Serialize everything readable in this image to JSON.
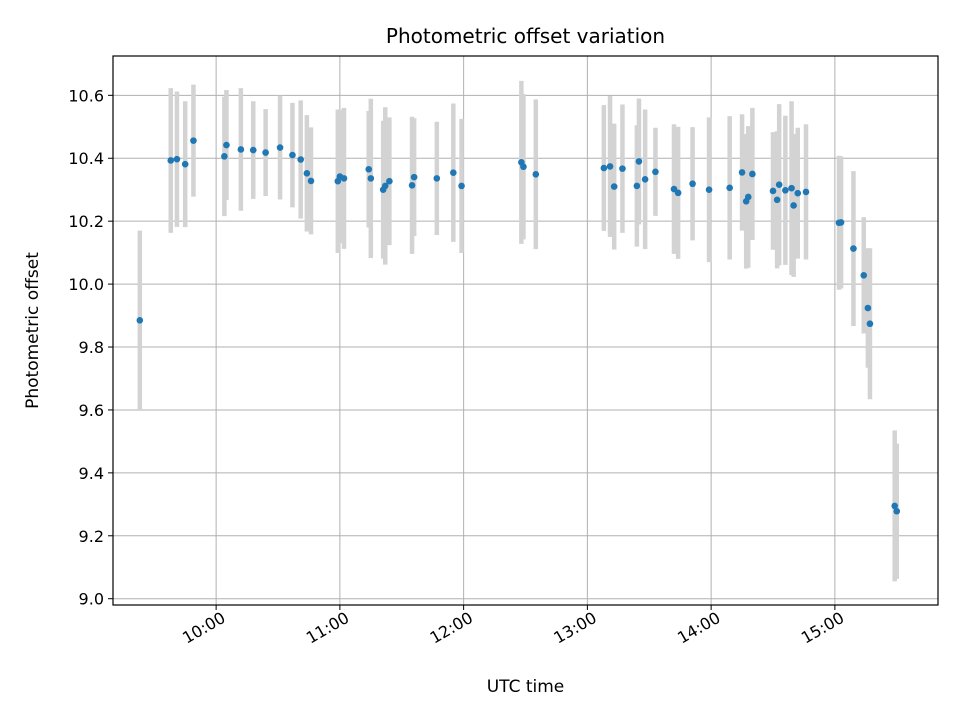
{
  "chart_data": {
    "type": "scatter",
    "title": "Photometric offset variation",
    "xlabel": "UTC time",
    "ylabel": "Photometric offset",
    "grid": true,
    "xlim": [
      "09:10",
      "15:50"
    ],
    "ylim": [
      8.98,
      10.725
    ],
    "x_ticks": [
      "10:00",
      "11:00",
      "12:00",
      "13:00",
      "14:00",
      "15:00"
    ],
    "y_ticks": [
      "9.0",
      "9.2",
      "9.4",
      "9.6",
      "9.8",
      "10.0",
      "10.2",
      "10.4",
      "10.6"
    ],
    "colors": {
      "point": "#1f77b4",
      "errorbar": "#d3d3d3",
      "grid": "#b0b0b0"
    },
    "series": [
      {
        "x": [
          "09:23",
          "09:38",
          "09:41",
          "09:45",
          "09:49",
          "10:04",
          "10:05",
          "10:12",
          "10:18",
          "10:24",
          "10:31",
          "10:37",
          "10:41",
          "10:44",
          "10:46",
          "10:59",
          "11:00",
          "11:02",
          "11:14",
          "11:15",
          "11:21",
          "11:22",
          "11:24",
          "11:35",
          "11:36",
          "11:47",
          "11:55",
          "11:59",
          "12:28",
          "12:29",
          "12:35",
          "13:08",
          "13:11",
          "13:13",
          "13:17",
          "13:24",
          "13:25",
          "13:28",
          "13:33",
          "13:42",
          "13:44",
          "13:51",
          "13:59",
          "14:09",
          "14:15",
          "14:17",
          "14:18",
          "14:20",
          "14:30",
          "14:32",
          "14:33",
          "14:36",
          "14:39",
          "14:40",
          "14:42",
          "14:46",
          "15:02",
          "15:03",
          "15:09",
          "15:14",
          "15:16",
          "15:17",
          "15:29",
          "15:30"
        ],
        "y": [
          9.885,
          10.393,
          10.397,
          10.381,
          10.456,
          10.406,
          10.442,
          10.428,
          10.426,
          10.418,
          10.434,
          10.41,
          10.396,
          10.352,
          10.328,
          10.327,
          10.342,
          10.336,
          10.365,
          10.336,
          10.3,
          10.312,
          10.327,
          10.314,
          10.34,
          10.336,
          10.354,
          10.312,
          10.387,
          10.373,
          10.349,
          10.369,
          10.374,
          10.31,
          10.367,
          10.312,
          10.39,
          10.333,
          10.357,
          10.302,
          10.29,
          10.319,
          10.3,
          10.306,
          10.355,
          10.263,
          10.277,
          10.35,
          10.296,
          10.268,
          10.316,
          10.298,
          10.305,
          10.25,
          10.289,
          10.293,
          10.195,
          10.196,
          10.113,
          10.028,
          9.924,
          9.874,
          9.295,
          9.278
        ],
        "err": [
          0.285,
          0.23,
          0.215,
          0.2,
          0.178,
          0.19,
          0.175,
          0.195,
          0.155,
          0.138,
          0.165,
          0.166,
          0.188,
          0.185,
          0.17,
          0.228,
          0.212,
          0.224,
          0.185,
          0.253,
          0.219,
          0.25,
          0.203,
          0.218,
          0.187,
          0.18,
          0.22,
          0.213,
          0.259,
          0.231,
          0.238,
          0.2,
          0.224,
          0.2,
          0.204,
          0.193,
          0.2,
          0.222,
          0.14,
          0.206,
          0.21,
          0.18,
          0.23,
          0.228,
          0.185,
          0.214,
          0.225,
          0.21,
          0.187,
          0.218,
          0.256,
          0.237,
          0.276,
          0.227,
          0.208,
          0.215,
          0.213,
          0.21,
          0.246,
          0.185,
          0.19,
          0.24,
          0.24,
          0.215
        ]
      }
    ]
  }
}
